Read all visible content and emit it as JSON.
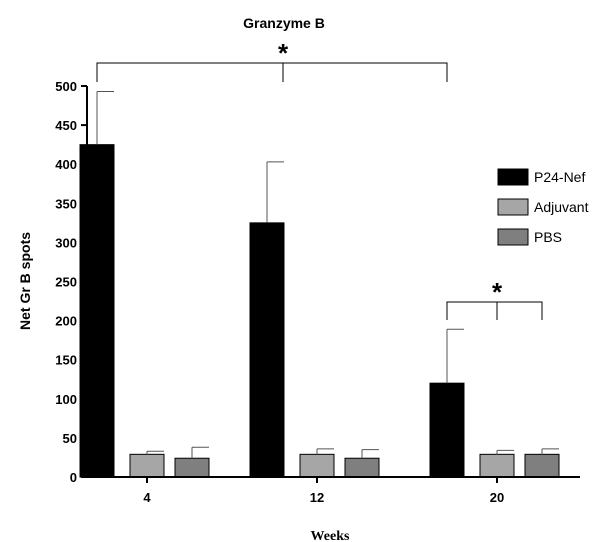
{
  "chart_data": {
    "type": "bar",
    "title": "Granzyme B",
    "xlabel": "Weeks",
    "ylabel": "Net Gr B spots",
    "categories": [
      "4",
      "12",
      "20"
    ],
    "ylim": [
      0,
      500
    ],
    "yticks": [
      "0",
      "50",
      "100",
      "150",
      "200",
      "250",
      "300",
      "350",
      "400",
      "450",
      "500"
    ],
    "series": [
      {
        "name": "P24-Nef",
        "color": "#000000",
        "values": [
          425,
          325,
          120
        ],
        "error_upper": [
          493,
          403,
          189
        ]
      },
      {
        "name": "Adjuvant",
        "color": "#a6a6a6",
        "values": [
          29,
          29,
          29
        ],
        "error_upper": [
          33,
          36,
          34
        ]
      },
      {
        "name": "PBS",
        "color": "#7f7f7f",
        "values": [
          24,
          24,
          29
        ],
        "error_upper": [
          38,
          35,
          36
        ]
      }
    ],
    "significance": [
      {
        "label": "*",
        "between": [
          "P24-Nef week 4",
          "P24-Nef week 20"
        ]
      },
      {
        "label": "*",
        "between": [
          "P24-Nef week 20",
          "Adjuvant and PBS week 20"
        ]
      }
    ],
    "legend_position": "right",
    "grid": false
  }
}
